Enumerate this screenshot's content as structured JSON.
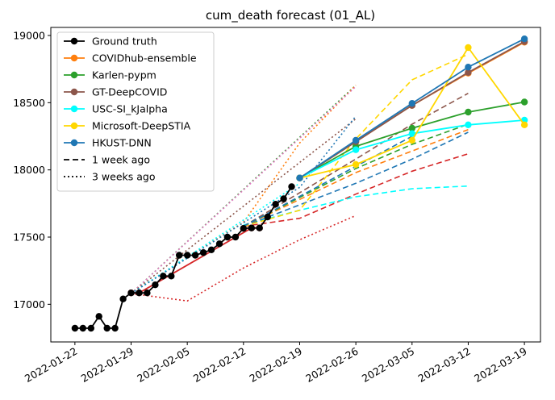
{
  "chart_data": {
    "type": "line",
    "title": "cum_death forecast (01_AL)",
    "xlabel": "",
    "ylabel": "",
    "x_ticks": [
      "2022-01-22",
      "2022-01-29",
      "2022-02-05",
      "2022-02-12",
      "2022-02-19",
      "2022-02-26",
      "2022-03-05",
      "2022-03-12",
      "2022-03-19"
    ],
    "y_ticks": [
      17000,
      17500,
      18000,
      18500,
      19000
    ],
    "xlim": [
      "2022-01-19",
      "2022-03-21"
    ],
    "ylim": [
      16720,
      19060
    ],
    "grid": false,
    "legend_position": "top-left",
    "colors": {
      "ground_truth": "#000000",
      "ensemble": "#ff7f0e",
      "karlen": "#2ca02c",
      "gt_deepcovid": "#8c564b",
      "usc": "#00ffff",
      "microsoft": "#ffd700",
      "hkust": "#1f77b4",
      "red_unlisted": "#d62728",
      "pink_unlisted": "#e377c2"
    },
    "legend": [
      {
        "label": "Ground truth",
        "color": "#000000",
        "style": "solid",
        "marker": true
      },
      {
        "label": "COVIDhub-ensemble",
        "color": "#ff7f0e",
        "style": "solid",
        "marker": true
      },
      {
        "label": "Karlen-pypm",
        "color": "#2ca02c",
        "style": "solid",
        "marker": true
      },
      {
        "label": "GT-DeepCOVID",
        "color": "#8c564b",
        "style": "solid",
        "marker": true
      },
      {
        "label": "USC-SI_kJalpha",
        "color": "#00ffff",
        "style": "solid",
        "marker": true
      },
      {
        "label": "Microsoft-DeepSTIA",
        "color": "#ffd700",
        "style": "solid",
        "marker": true
      },
      {
        "label": "HKUST-DNN",
        "color": "#1f77b4",
        "style": "solid",
        "marker": true
      },
      {
        "label": "1 week ago",
        "color": "#000000",
        "style": "dashed",
        "marker": false
      },
      {
        "label": "3 weeks ago",
        "color": "#000000",
        "style": "dotted",
        "marker": false
      }
    ],
    "series": [
      {
        "color": "#d62728",
        "style": "dotted",
        "marker": false,
        "points": [
          [
            "2022-01-29",
            17080
          ],
          [
            "2022-02-05",
            17025
          ],
          [
            "2022-02-12",
            17270
          ],
          [
            "2022-02-19",
            17480
          ],
          [
            "2022-02-26",
            17660
          ]
        ]
      },
      {
        "color": "#2ca02c",
        "style": "dotted",
        "marker": false,
        "points": [
          [
            "2022-01-29",
            17080
          ],
          [
            "2022-02-26",
            18630
          ]
        ]
      },
      {
        "color": "#ff7f0e",
        "style": "dotted",
        "marker": false,
        "points": [
          [
            "2022-01-29",
            17080
          ],
          [
            "2022-02-05",
            17350
          ],
          [
            "2022-02-12",
            17610
          ],
          [
            "2022-02-19",
            18200
          ],
          [
            "2022-02-26",
            18630
          ]
        ]
      },
      {
        "color": "#e377c2",
        "style": "dotted",
        "marker": false,
        "points": [
          [
            "2022-01-29",
            17080
          ],
          [
            "2022-02-26",
            18620
          ]
        ]
      },
      {
        "color": "#8c564b",
        "style": "dotted",
        "marker": false,
        "points": [
          [
            "2022-01-29",
            17080
          ],
          [
            "2022-02-26",
            18380
          ]
        ]
      },
      {
        "color": "#00ffff",
        "style": "dotted",
        "marker": false,
        "points": [
          [
            "2022-01-29",
            17080
          ],
          [
            "2022-02-19",
            17900
          ]
        ]
      },
      {
        "color": "#1f77b4",
        "style": "dotted",
        "marker": false,
        "points": [
          [
            "2022-01-29",
            17080
          ],
          [
            "2022-02-19",
            17870
          ],
          [
            "2022-02-26",
            18400
          ]
        ]
      },
      {
        "color": "#d62728",
        "style": "dashed",
        "marker": false,
        "points": [
          [
            "2022-02-12",
            17580
          ],
          [
            "2022-02-19",
            17640
          ],
          [
            "2022-02-26",
            17820
          ],
          [
            "2022-03-05",
            17990
          ],
          [
            "2022-03-12",
            18120
          ]
        ]
      },
      {
        "color": "#00ffff",
        "style": "dashed",
        "marker": false,
        "points": [
          [
            "2022-02-12",
            17590
          ],
          [
            "2022-02-19",
            17700
          ],
          [
            "2022-02-26",
            17800
          ],
          [
            "2022-03-05",
            17860
          ],
          [
            "2022-03-12",
            17880
          ]
        ]
      },
      {
        "color": "#1f77b4",
        "style": "dashed",
        "marker": false,
        "points": [
          [
            "2022-02-12",
            17580
          ],
          [
            "2022-02-26",
            17900
          ],
          [
            "2022-03-05",
            18080
          ],
          [
            "2022-03-12",
            18280
          ]
        ]
      },
      {
        "color": "#ff7f0e",
        "style": "dashed",
        "marker": false,
        "points": [
          [
            "2022-02-12",
            17580
          ],
          [
            "2022-02-26",
            17980
          ],
          [
            "2022-03-05",
            18140
          ],
          [
            "2022-03-12",
            18300
          ]
        ]
      },
      {
        "color": "#2ca02c",
        "style": "dashed",
        "marker": false,
        "points": [
          [
            "2022-02-12",
            17580
          ],
          [
            "2022-02-26",
            18010
          ],
          [
            "2022-03-05",
            18190
          ],
          [
            "2022-03-12",
            18340
          ]
        ]
      },
      {
        "color": "#8c564b",
        "style": "dashed",
        "marker": false,
        "points": [
          [
            "2022-02-12",
            17580
          ],
          [
            "2022-02-26",
            18080
          ],
          [
            "2022-03-05",
            18340
          ],
          [
            "2022-03-12",
            18570
          ]
        ]
      },
      {
        "color": "#ffd700",
        "style": "dashed",
        "marker": false,
        "points": [
          [
            "2022-02-12",
            17580
          ],
          [
            "2022-02-19",
            17700
          ],
          [
            "2022-02-26",
            18230
          ],
          [
            "2022-03-05",
            18670
          ],
          [
            "2022-03-12",
            18860
          ]
        ]
      },
      {
        "color": "#1f77b4",
        "style": "dashed",
        "marker": false,
        "points": [
          [
            "2022-02-12",
            17580
          ],
          [
            "2022-03-05",
            18250
          ]
        ]
      },
      {
        "color": "#d62728",
        "style": "solid",
        "marker": true,
        "points": [
          [
            "2022-01-29",
            17085
          ],
          [
            "2022-01-30",
            17085
          ],
          [
            "2022-02-13",
            17568
          ],
          [
            "2022-02-14",
            17568
          ]
        ]
      },
      {
        "name": "Ground truth",
        "color": "#000000",
        "style": "solid",
        "marker": true,
        "points": [
          [
            "2022-01-22",
            16822
          ],
          [
            "2022-01-23",
            16822
          ],
          [
            "2022-01-24",
            16822
          ],
          [
            "2022-01-25",
            16910
          ],
          [
            "2022-01-26",
            16822
          ],
          [
            "2022-01-27",
            16822
          ],
          [
            "2022-01-28",
            17040
          ],
          [
            "2022-01-29",
            17085
          ],
          [
            "2022-01-30",
            17085
          ],
          [
            "2022-01-31",
            17085
          ],
          [
            "2022-02-01",
            17145
          ],
          [
            "2022-02-02",
            17210
          ],
          [
            "2022-02-03",
            17210
          ],
          [
            "2022-02-04",
            17365
          ],
          [
            "2022-02-05",
            17365
          ],
          [
            "2022-02-06",
            17365
          ],
          [
            "2022-02-07",
            17385
          ],
          [
            "2022-02-08",
            17405
          ],
          [
            "2022-02-09",
            17450
          ],
          [
            "2022-02-10",
            17500
          ],
          [
            "2022-02-11",
            17500
          ],
          [
            "2022-02-12",
            17565
          ],
          [
            "2022-02-13",
            17568
          ],
          [
            "2022-02-14",
            17568
          ],
          [
            "2022-02-15",
            17650
          ],
          [
            "2022-02-16",
            17745
          ],
          [
            "2022-02-17",
            17785
          ],
          [
            "2022-02-18",
            17875
          ]
        ]
      },
      {
        "name": "COVIDhub-ensemble",
        "color": "#ff7f0e",
        "style": "solid",
        "marker": true,
        "points": [
          [
            "2022-02-19",
            17940
          ],
          [
            "2022-02-26",
            18210
          ],
          [
            "2022-03-05",
            18480
          ],
          [
            "2022-03-12",
            18720
          ],
          [
            "2022-03-19",
            18950
          ]
        ]
      },
      {
        "name": "Karlen-pypm",
        "color": "#2ca02c",
        "style": "solid",
        "marker": true,
        "points": [
          [
            "2022-02-19",
            17940
          ],
          [
            "2022-02-26",
            18175
          ],
          [
            "2022-03-05",
            18310
          ],
          [
            "2022-03-12",
            18430
          ],
          [
            "2022-03-19",
            18505
          ]
        ]
      },
      {
        "name": "GT-DeepCOVID",
        "color": "#8c564b",
        "style": "solid",
        "marker": true,
        "points": [
          [
            "2022-02-19",
            17940
          ],
          [
            "2022-02-26",
            18210
          ],
          [
            "2022-03-05",
            18480
          ],
          [
            "2022-03-12",
            18725
          ],
          [
            "2022-03-19",
            18955
          ]
        ]
      },
      {
        "name": "USC-SI_kJalpha",
        "color": "#00ffff",
        "style": "solid",
        "marker": true,
        "points": [
          [
            "2022-02-19",
            17940
          ],
          [
            "2022-02-26",
            18150
          ],
          [
            "2022-03-05",
            18270
          ],
          [
            "2022-03-12",
            18335
          ],
          [
            "2022-03-19",
            18370
          ]
        ]
      },
      {
        "name": "Microsoft-DeepSTIA",
        "color": "#ffd700",
        "style": "solid",
        "marker": true,
        "points": [
          [
            "2022-02-19",
            17940
          ],
          [
            "2022-02-26",
            18040
          ],
          [
            "2022-03-05",
            18220
          ],
          [
            "2022-03-12",
            18910
          ],
          [
            "2022-03-19",
            18335
          ]
        ]
      },
      {
        "name": "HKUST-DNN",
        "color": "#1f77b4",
        "style": "solid",
        "marker": true,
        "points": [
          [
            "2022-02-19",
            17940
          ],
          [
            "2022-02-26",
            18220
          ],
          [
            "2022-03-05",
            18495
          ],
          [
            "2022-03-12",
            18765
          ],
          [
            "2022-03-19",
            18975
          ]
        ]
      }
    ]
  }
}
